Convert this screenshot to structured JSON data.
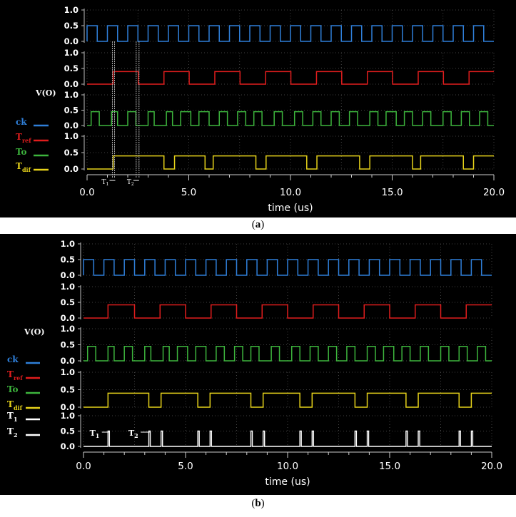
{
  "figure": {
    "caption_a": "a",
    "caption_b": "b"
  },
  "colors": {
    "ck": "#2f7fd9",
    "Tref": "#e01d1d",
    "To": "#3db53d",
    "Tdif": "#e6d21a",
    "T12": "#ffffff"
  },
  "chart_data": [
    {
      "type": "line",
      "panel": "a",
      "xlabel": "time (us)",
      "xlim": [
        0,
        20
      ],
      "x_ticks": [
        "0.0",
        "5.0",
        "10.0",
        "15.0",
        "20.0"
      ],
      "ylabel": "V(O)",
      "grid": true,
      "legend_position": "left",
      "subplots": [
        {
          "ylim": [
            0,
            1
          ],
          "y_ticks": [
            "1.0",
            "0.5",
            "0.0"
          ],
          "series": [
            {
              "name": "ck",
              "color_key": "ck",
              "low": 0,
              "high": 0.5,
              "edges": [
                0.0,
                0.5,
                1.0,
                1.5,
                2.0,
                2.5,
                3.0,
                3.5,
                4.0,
                4.5,
                5.0,
                5.5,
                6.0,
                6.5,
                7.0,
                7.5,
                8.0,
                8.5,
                9.0,
                9.5,
                10.0,
                10.5,
                11.0,
                11.5,
                12.0,
                12.5,
                13.0,
                13.5,
                14.0,
                14.5,
                15.0,
                15.5,
                16.0,
                16.5,
                17.0,
                17.5,
                18.0,
                18.5,
                19.0,
                19.5
              ]
            }
          ]
        },
        {
          "ylim": [
            0,
            1
          ],
          "y_ticks": [
            "1.0",
            "0.5",
            "0.0"
          ],
          "series": [
            {
              "name": "Tref",
              "color_key": "Tref",
              "low": 0,
              "high": 0.4,
              "edges": [
                1.28,
                2.52,
                3.78,
                5.02,
                6.28,
                7.52,
                8.78,
                10.02,
                11.28,
                12.52,
                13.78,
                15.02,
                16.28,
                17.52,
                18.78
              ]
            }
          ]
        },
        {
          "ylim": [
            0,
            1
          ],
          "y_ticks": [
            "1.0",
            "0.5",
            "0.0"
          ],
          "series": [
            {
              "name": "To",
              "color_key": "To",
              "low": 0,
              "high": 0.45,
              "edges": [
                0.2,
                0.6,
                1.2,
                1.5,
                2.0,
                2.4,
                3.0,
                3.3,
                3.9,
                4.2,
                4.6,
                5.1,
                5.5,
                6.0,
                6.5,
                6.9,
                7.4,
                7.8,
                8.2,
                8.6,
                9.2,
                9.6,
                10.2,
                10.6,
                11.1,
                11.5,
                12.0,
                12.4,
                12.9,
                13.3,
                13.9,
                14.3,
                14.7,
                15.2,
                15.6,
                16.0,
                16.5,
                16.9,
                17.5,
                17.9,
                18.4,
                18.8,
                19.3,
                19.7
              ]
            }
          ]
        },
        {
          "ylim": [
            0,
            1
          ],
          "y_ticks": [
            "1.0",
            "0.5",
            "0.0"
          ],
          "series": [
            {
              "name": "Tdif",
              "color_key": "Tdif",
              "low": 0,
              "high": 0.4,
              "edges": [
                1.28,
                3.78,
                4.3,
                5.8,
                6.2,
                8.3,
                8.8,
                10.8,
                11.3,
                13.4,
                13.9,
                16.0,
                16.4,
                18.5,
                19.0
              ]
            }
          ]
        }
      ],
      "annotations": {
        "t1_label": "T",
        "t1_sub": "1",
        "t2_label": "T",
        "t2_sub": "2",
        "t1_range": [
          1.15,
          1.28
        ],
        "t2_range": [
          2.5,
          2.52
        ]
      },
      "legend": [
        {
          "text": "ck",
          "sub": ""
        },
        {
          "text": "T",
          "sub": "ref"
        },
        {
          "text": "To",
          "sub": ""
        },
        {
          "text": "T",
          "sub": "dif"
        }
      ]
    },
    {
      "type": "line",
      "panel": "b",
      "xlabel": "time (us)",
      "xlim": [
        0,
        20
      ],
      "x_ticks": [
        "0.0",
        "5.0",
        "10.0",
        "15.0",
        "20.0"
      ],
      "ylabel": "V(O)",
      "grid": true,
      "legend_position": "left",
      "subplots": [
        {
          "ylim": [
            0,
            1
          ],
          "y_ticks": [
            "1.0",
            "0.5",
            "0.0"
          ],
          "series": [
            {
              "name": "ck",
              "color_key": "ck",
              "low": 0,
              "high": 0.5,
              "edges": [
                0.0,
                0.5,
                1.0,
                1.5,
                2.0,
                2.5,
                3.0,
                3.5,
                4.0,
                4.5,
                5.0,
                5.5,
                6.0,
                6.5,
                7.0,
                7.5,
                8.0,
                8.5,
                9.0,
                9.5,
                10.0,
                10.5,
                11.0,
                11.5,
                12.0,
                12.5,
                13.0,
                13.5,
                14.0,
                14.5,
                15.0,
                15.5,
                16.0,
                16.5,
                17.0,
                17.5,
                18.0,
                18.5,
                19.0,
                19.5
              ]
            }
          ]
        },
        {
          "ylim": [
            0,
            1
          ],
          "y_ticks": [
            "1.0",
            "0.5",
            "0.0"
          ],
          "series": [
            {
              "name": "Tref",
              "color_key": "Tref",
              "low": 0,
              "high": 0.42,
              "edges": [
                1.2,
                2.5,
                3.75,
                5.0,
                6.25,
                7.5,
                8.75,
                10.0,
                11.25,
                12.5,
                13.75,
                15.0,
                16.25,
                17.5,
                18.75
              ]
            }
          ]
        },
        {
          "ylim": [
            0,
            1
          ],
          "y_ticks": [
            "1.0",
            "0.5",
            "0.0"
          ],
          "series": [
            {
              "name": "To",
              "color_key": "To",
              "low": 0,
              "high": 0.45,
              "edges": [
                0.2,
                0.6,
                1.2,
                1.5,
                2.0,
                2.4,
                3.0,
                3.3,
                3.9,
                4.2,
                4.6,
                5.1,
                5.5,
                6.0,
                6.5,
                6.9,
                7.4,
                7.8,
                8.2,
                8.6,
                9.2,
                9.6,
                10.2,
                10.6,
                11.1,
                11.5,
                12.0,
                12.4,
                12.9,
                13.3,
                13.9,
                14.3,
                14.7,
                15.2,
                15.6,
                16.0,
                16.5,
                16.9,
                17.5,
                17.9,
                18.4,
                18.8,
                19.3,
                19.7
              ]
            }
          ]
        },
        {
          "ylim": [
            0,
            1
          ],
          "y_ticks": [
            "1.0",
            "0.5",
            "0.0"
          ],
          "series": [
            {
              "name": "Tdif",
              "color_key": "Tdif",
              "low": 0,
              "high": 0.4,
              "edges": [
                1.2,
                3.2,
                3.8,
                5.6,
                6.2,
                8.2,
                8.8,
                10.6,
                11.2,
                13.3,
                13.9,
                15.8,
                16.4,
                18.4,
                19.0
              ]
            }
          ]
        },
        {
          "ylim": [
            0,
            1
          ],
          "y_ticks": [
            "1.0",
            "0.5",
            "0.0"
          ],
          "series": [
            {
              "name": "T1 T2",
              "color_key": "T12",
              "low": 0,
              "high": 0.5,
              "spikes": [
                1.2,
                3.2,
                3.8,
                5.6,
                6.2,
                8.2,
                8.8,
                10.6,
                11.2,
                13.3,
                13.9,
                15.8,
                16.4,
                18.4,
                19.0
              ],
              "spike_width": 0.07
            }
          ]
        }
      ],
      "annotations": {
        "t1_label": "T",
        "t1_sub": "1",
        "t2_label": "T",
        "t2_sub": "2"
      },
      "legend": [
        {
          "text": "ck",
          "sub": ""
        },
        {
          "text": "T",
          "sub": "ref"
        },
        {
          "text": "To",
          "sub": ""
        },
        {
          "text": "T",
          "sub": "dif"
        },
        {
          "text": "T",
          "sub": "1"
        },
        {
          "text": "T",
          "sub": "2"
        }
      ]
    }
  ]
}
